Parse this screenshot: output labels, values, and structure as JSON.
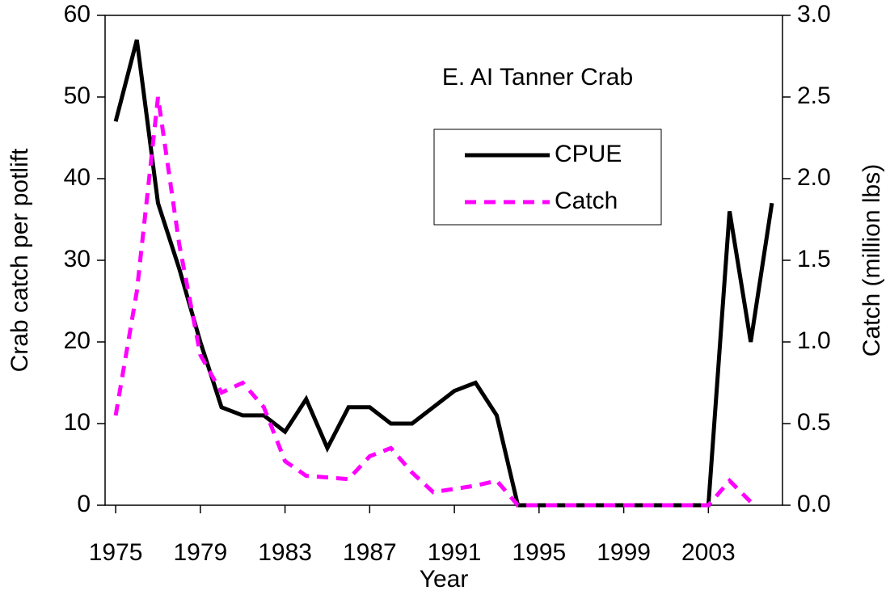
{
  "chart_data": {
    "type": "line",
    "annotation": "E. AI Tanner Crab",
    "xlabel": "Year",
    "ylabel": "Crab catch per potlift",
    "y2label": "Catch (million lbs)",
    "x": [
      1975,
      1976,
      1977,
      1978,
      1979,
      1980,
      1981,
      1982,
      1983,
      1984,
      1985,
      1986,
      1987,
      1988,
      1989,
      1990,
      1991,
      1992,
      1993,
      1994,
      1995,
      1996,
      1997,
      1998,
      1999,
      2000,
      2001,
      2002,
      2003,
      2004,
      2005,
      2006
    ],
    "series": [
      {
        "name": "CPUE",
        "color": "#000000",
        "dash": false,
        "values": [
          47,
          57,
          37,
          29,
          20,
          12,
          11,
          11,
          9,
          13,
          7,
          12,
          12,
          10,
          10,
          12,
          14,
          15,
          11,
          0,
          0,
          0,
          0,
          0,
          0,
          0,
          0,
          0,
          0,
          36,
          20,
          37
        ]
      },
      {
        "name": "Catch",
        "color": "#ff00ff",
        "dash": true,
        "axis": "y2",
        "values": [
          0.55,
          1.31,
          2.5,
          1.6,
          0.92,
          0.69,
          0.75,
          0.6,
          0.27,
          0.18,
          0.17,
          0.16,
          0.3,
          0.35,
          0.2,
          0.08,
          0.1,
          0.12,
          0.15,
          0,
          0,
          0,
          0,
          0,
          0,
          0,
          0,
          0,
          0,
          0.15,
          0.02,
          null
        ]
      }
    ],
    "xlim": [
      1974.5,
      2006.5
    ],
    "xticks": [
      1975,
      1979,
      1983,
      1987,
      1991,
      1995,
      1999,
      2003
    ],
    "ylim": [
      0,
      60
    ],
    "yticks": [
      0,
      10,
      20,
      30,
      40,
      50,
      60
    ],
    "y2lim": [
      0,
      3
    ],
    "y2ticks": [
      {
        "value": 0,
        "label": "0.0"
      },
      {
        "value": 0.5,
        "label": "0.5"
      },
      {
        "value": 1,
        "label": "1.0"
      },
      {
        "value": 1.5,
        "label": "1.5"
      },
      {
        "value": 2,
        "label": "2.0"
      },
      {
        "value": 2.5,
        "label": "2.5"
      },
      {
        "value": 3,
        "label": "3.0"
      }
    ]
  }
}
